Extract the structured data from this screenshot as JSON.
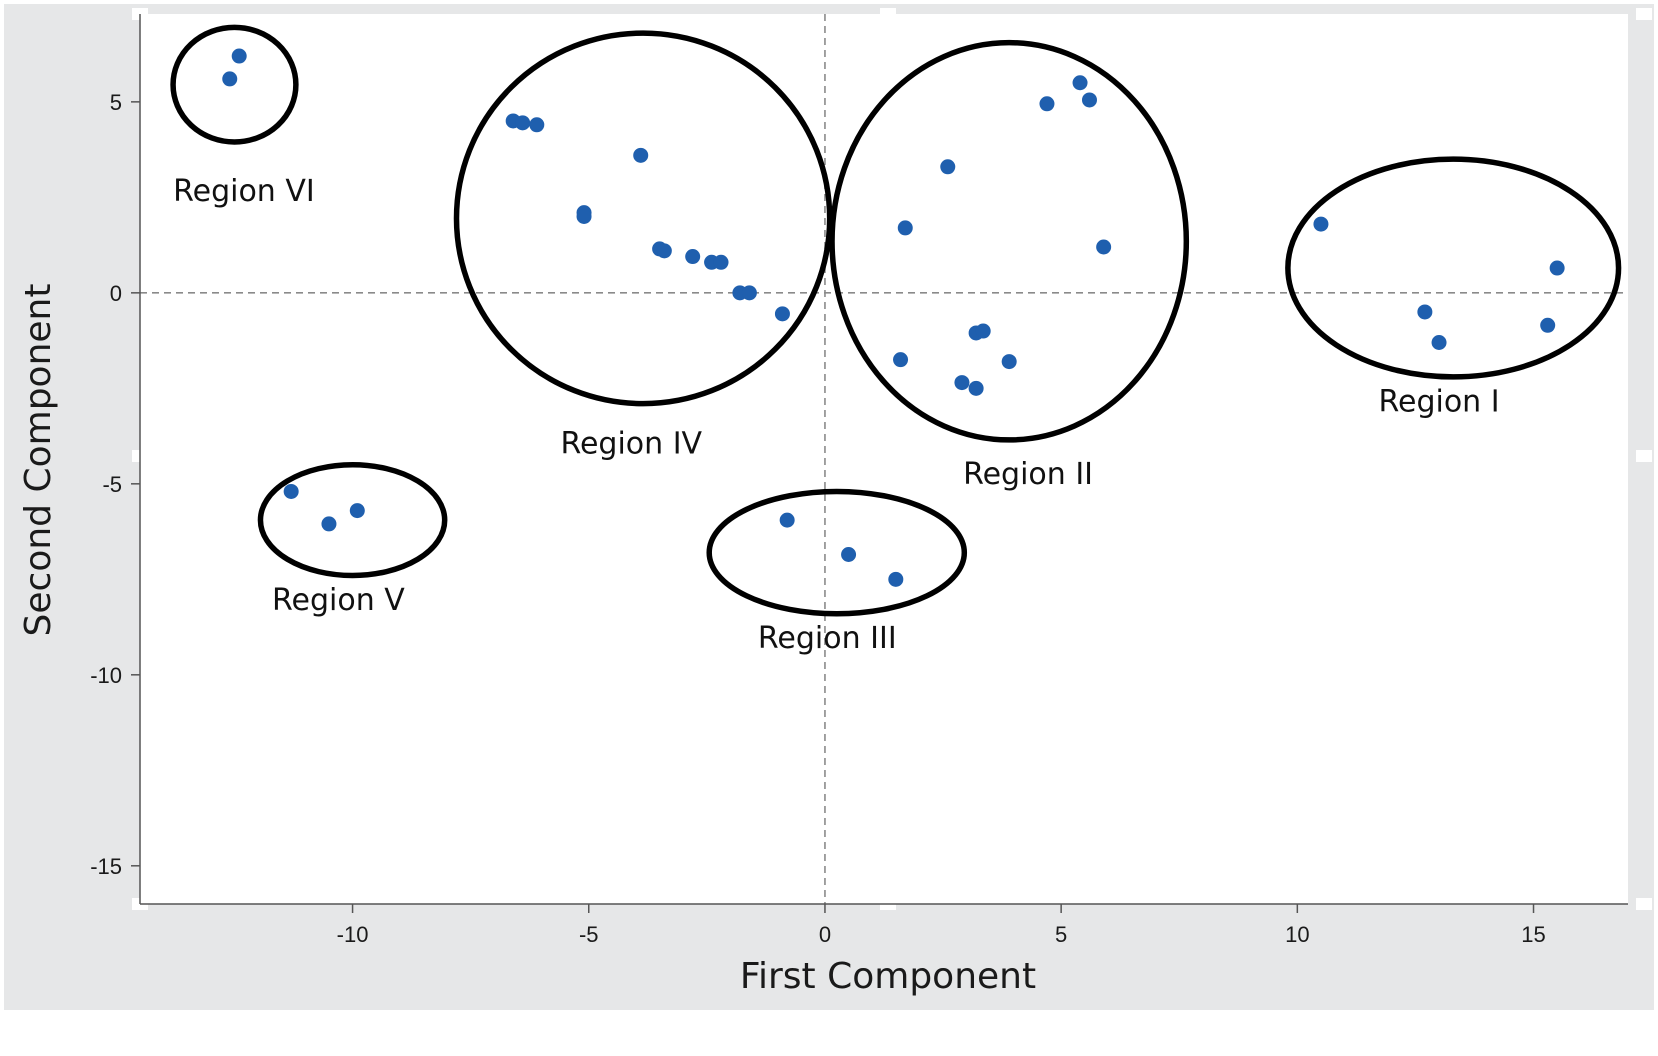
{
  "chart_data": {
    "type": "scatter",
    "xlabel": "First Component",
    "ylabel": "Second Component",
    "xlim": [
      -14.5,
      17
    ],
    "ylim": [
      -16,
      7.3
    ],
    "x_ticks": [
      -10,
      -5,
      0,
      5,
      10,
      15
    ],
    "y_ticks": [
      5,
      0,
      -5,
      -10,
      -15
    ],
    "reference_lines": {
      "x": 0,
      "y": 0,
      "style": "dashed"
    },
    "grid": false,
    "colors": {
      "point": "#1f5fae",
      "outline": "#000000",
      "frame_background": "#e6e7e8",
      "plot_background": "#ffffff",
      "reference_line": "#8a8a8a"
    },
    "points": [
      {
        "x": -12.6,
        "y": 5.6
      },
      {
        "x": -12.4,
        "y": 6.2
      },
      {
        "x": -6.6,
        "y": 4.5
      },
      {
        "x": -6.4,
        "y": 4.45
      },
      {
        "x": -6.1,
        "y": 4.4
      },
      {
        "x": -3.9,
        "y": 3.6
      },
      {
        "x": -5.1,
        "y": 2.1
      },
      {
        "x": -5.1,
        "y": 2.0
      },
      {
        "x": -3.5,
        "y": 1.15
      },
      {
        "x": -3.4,
        "y": 1.1
      },
      {
        "x": -2.8,
        "y": 0.95
      },
      {
        "x": -2.4,
        "y": 0.8
      },
      {
        "x": -2.2,
        "y": 0.8
      },
      {
        "x": -1.8,
        "y": 0.0
      },
      {
        "x": -1.6,
        "y": 0.0
      },
      {
        "x": -0.9,
        "y": -0.55
      },
      {
        "x": 1.7,
        "y": 1.7
      },
      {
        "x": 2.6,
        "y": 3.3
      },
      {
        "x": 4.7,
        "y": 4.95
      },
      {
        "x": 5.4,
        "y": 5.5
      },
      {
        "x": 5.6,
        "y": 5.05
      },
      {
        "x": 5.9,
        "y": 1.2
      },
      {
        "x": 1.6,
        "y": -1.75
      },
      {
        "x": 2.9,
        "y": -2.35
      },
      {
        "x": 3.2,
        "y": -2.5
      },
      {
        "x": 3.2,
        "y": -1.05
      },
      {
        "x": 3.35,
        "y": -1.0
      },
      {
        "x": 3.9,
        "y": -1.8
      },
      {
        "x": 10.5,
        "y": 1.8
      },
      {
        "x": 12.7,
        "y": -0.5
      },
      {
        "x": 13.0,
        "y": -1.3
      },
      {
        "x": 15.3,
        "y": -0.85
      },
      {
        "x": 15.5,
        "y": 0.65
      },
      {
        "x": -11.3,
        "y": -5.2
      },
      {
        "x": -10.5,
        "y": -6.05
      },
      {
        "x": -9.9,
        "y": -5.7
      },
      {
        "x": -0.8,
        "y": -5.95
      },
      {
        "x": 0.5,
        "y": -6.85
      },
      {
        "x": 1.5,
        "y": -7.5
      }
    ],
    "regions": [
      {
        "label": "Region I",
        "cx": 13.3,
        "cy": 0.65,
        "rx": 3.5,
        "ry": 2.85
      },
      {
        "label": "Region II",
        "cx": 3.9,
        "cy": 1.35,
        "rx": 3.75,
        "ry": 5.2
      },
      {
        "label": "Region III",
        "cx": 0.25,
        "cy": -6.8,
        "rx": 2.7,
        "ry": 1.6
      },
      {
        "label": "Region IV",
        "cx": -3.85,
        "cy": 1.95,
        "rx": 3.95,
        "ry": 4.85
      },
      {
        "label": "Region V",
        "cx": -10.0,
        "cy": -5.95,
        "rx": 1.95,
        "ry": 1.45
      },
      {
        "label": "Region VI",
        "cx": -12.5,
        "cy": 5.45,
        "rx": 1.3,
        "ry": 1.5
      }
    ],
    "region_label_positions": [
      {
        "label": "Region I",
        "x": 13.0,
        "y": -3.1
      },
      {
        "label": "Region II",
        "x": 4.3,
        "y": -5.0
      },
      {
        "label": "Region III",
        "x": 0.05,
        "y": -9.3
      },
      {
        "label": "Region IV",
        "x": -4.1,
        "y": -4.2
      },
      {
        "label": "Region V",
        "x": -10.3,
        "y": -8.3
      },
      {
        "label": "Region VI",
        "x": -12.3,
        "y": 2.4
      }
    ]
  }
}
